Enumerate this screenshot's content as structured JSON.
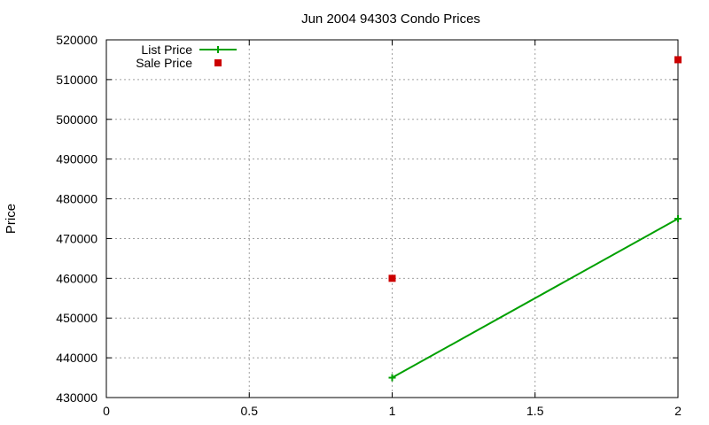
{
  "chart_data": {
    "type": "line",
    "title": "Jun 2004 94303 Condo Prices",
    "xlabel": "",
    "ylabel": "Price",
    "xlim": [
      0,
      2
    ],
    "ylim": [
      430000,
      520000
    ],
    "xticks": [
      0,
      0.5,
      1,
      1.5,
      2
    ],
    "xtick_labels": [
      "0",
      "0.5",
      "1",
      "1.5",
      "2"
    ],
    "yticks": [
      430000,
      440000,
      450000,
      460000,
      470000,
      480000,
      490000,
      500000,
      510000,
      520000
    ],
    "ytick_labels": [
      "430000",
      "440000",
      "450000",
      "460000",
      "470000",
      "480000",
      "490000",
      "500000",
      "510000",
      "520000"
    ],
    "grid": true,
    "legend_position": "top-left",
    "series": [
      {
        "name": "List Price",
        "style": "line-plus",
        "color": "#00a000",
        "x": [
          1,
          2
        ],
        "y": [
          435000,
          475000
        ]
      },
      {
        "name": "Sale Price",
        "style": "square-points",
        "color": "#cc0000",
        "x": [
          1,
          2
        ],
        "y": [
          460000,
          515000
        ]
      }
    ]
  }
}
